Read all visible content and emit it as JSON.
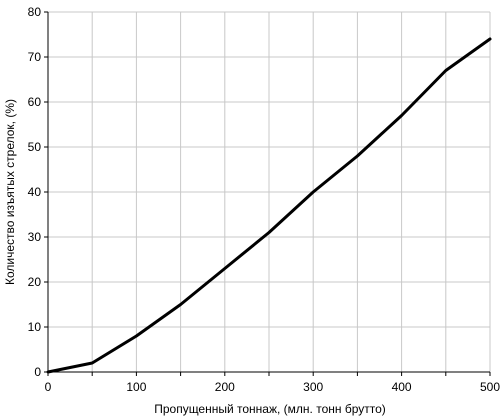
{
  "chart_data": {
    "type": "line",
    "title": "",
    "xlabel": "Пропущенный тоннаж, (млн. тонн брутто)",
    "ylabel": "Количество изъятых стрелок, (%)",
    "xlim": [
      0,
      500
    ],
    "ylim": [
      0,
      80
    ],
    "xticks": [
      0,
      100,
      200,
      300,
      400,
      500
    ],
    "yticks": [
      0,
      10,
      20,
      30,
      40,
      50,
      60,
      70,
      80
    ],
    "x_gridlines": [
      0,
      50,
      100,
      150,
      200,
      250,
      300,
      350,
      400,
      450,
      500
    ],
    "grid": true,
    "legend": "none",
    "series": [
      {
        "x": [
          0,
          50,
          100,
          150,
          200,
          250,
          300,
          350,
          400,
          450,
          500
        ],
        "values": [
          0,
          2,
          8,
          15,
          23,
          31,
          40,
          48,
          57,
          67,
          74
        ]
      }
    ]
  }
}
